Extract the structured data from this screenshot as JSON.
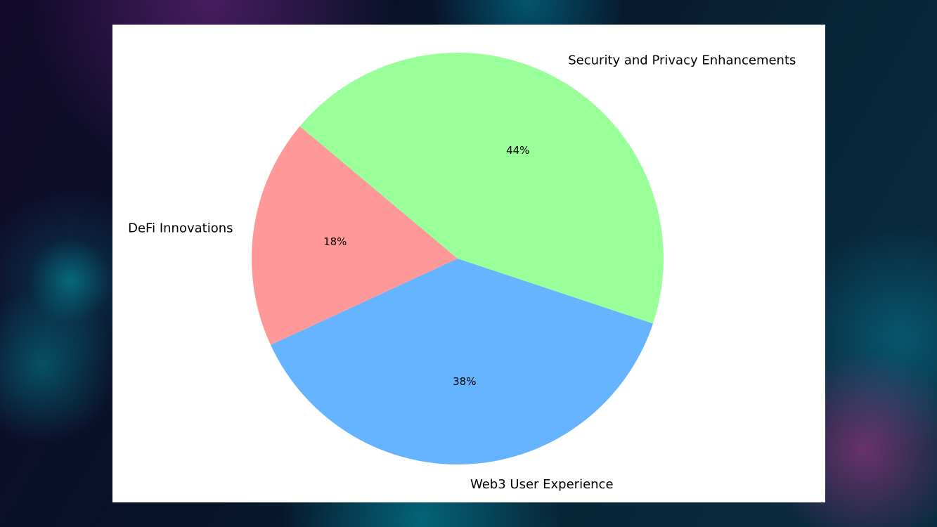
{
  "chart_data": {
    "type": "pie",
    "categories": [
      "DeFi Innovations",
      "Web3 User Experience",
      "Security and Privacy Enhancements"
    ],
    "values": [
      18,
      38,
      44
    ],
    "value_labels": [
      "18%",
      "38%",
      "44%"
    ],
    "colors": [
      "#ff9999",
      "#66b3ff",
      "#99ff99"
    ]
  }
}
